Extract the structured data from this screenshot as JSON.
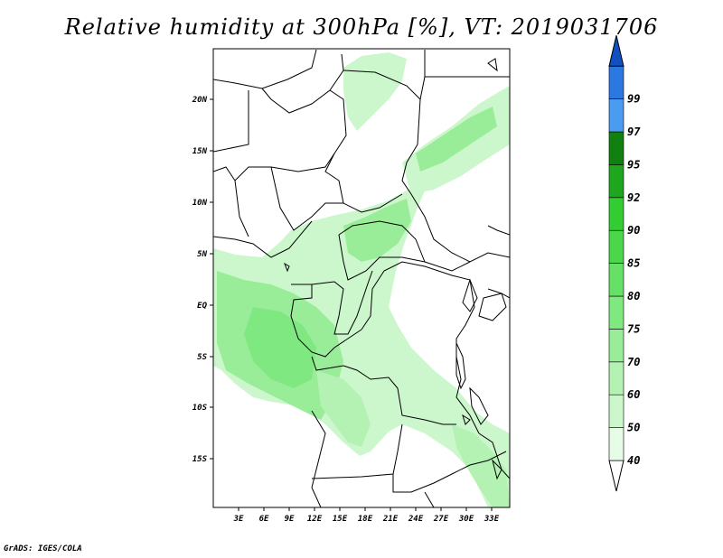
{
  "title": "Relative humidity at 300hPa [%], VT: 2019031706",
  "credit": "GrADS: IGES/COLA",
  "map": {
    "lon_labels": [
      "3E",
      "6E",
      "9E",
      "12E",
      "15E",
      "18E",
      "21E",
      "24E",
      "27E",
      "30E",
      "33E"
    ],
    "lat_labels": [
      "20N",
      "15N",
      "10N",
      "5N",
      "EQ",
      "5S",
      "10S",
      "15S"
    ]
  },
  "colorbar": {
    "levels": [
      "40",
      "50",
      "60",
      "70",
      "75",
      "80",
      "85",
      "90",
      "92",
      "95",
      "97",
      "99"
    ],
    "colors": [
      "#ffffff",
      "#e6fce6",
      "#ccf7cc",
      "#b3f2b3",
      "#99ed99",
      "#80e880",
      "#66e066",
      "#4cd64c",
      "#33cc33",
      "#1fa61f",
      "#108010",
      "#4a9cf0",
      "#2a78e0",
      "#1050c0"
    ]
  }
}
